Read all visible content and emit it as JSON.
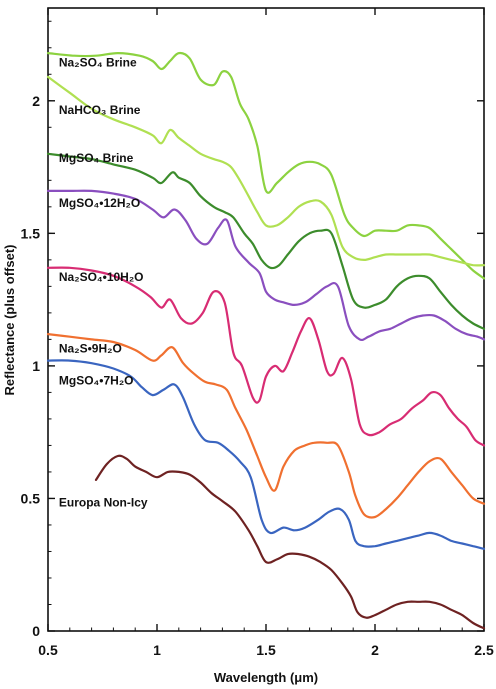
{
  "chart_data": {
    "type": "line",
    "title": "",
    "xlabel": "Wavelength (μm)",
    "ylabel": "Reflectance (plus offset)",
    "xlim": [
      0.5,
      2.5
    ],
    "ylim": [
      0,
      2.35
    ],
    "x_ticks": [
      "0.5",
      "1",
      "1.5",
      "2",
      "2.5"
    ],
    "y_ticks": [
      "0",
      "0.5",
      "1",
      "1.5",
      "2"
    ],
    "x_tick_values": [
      0.5,
      1.0,
      1.5,
      2.0,
      2.5
    ],
    "y_tick_values": [
      0,
      0.5,
      1.0,
      1.5,
      2.0
    ],
    "grid": false,
    "legend": "inline labels",
    "series": [
      {
        "name": "Na₂SO₄ Brine",
        "color": "#8cd240",
        "x": [
          0.5,
          0.62,
          0.72,
          0.82,
          0.92,
          0.98,
          1.02,
          1.06,
          1.1,
          1.15,
          1.2,
          1.26,
          1.3,
          1.34,
          1.38,
          1.42,
          1.46,
          1.5,
          1.55,
          1.6,
          1.65,
          1.7,
          1.75,
          1.8,
          1.86,
          1.9,
          1.95,
          2.0,
          2.05,
          2.1,
          2.15,
          2.2,
          2.25,
          2.3,
          2.35,
          2.4,
          2.45,
          2.5
        ],
        "y": [
          2.18,
          2.17,
          2.17,
          2.18,
          2.17,
          2.15,
          2.12,
          2.15,
          2.18,
          2.16,
          2.08,
          2.06,
          2.11,
          2.09,
          1.99,
          1.93,
          1.83,
          1.66,
          1.69,
          1.73,
          1.76,
          1.77,
          1.76,
          1.72,
          1.57,
          1.52,
          1.49,
          1.51,
          1.51,
          1.51,
          1.53,
          1.53,
          1.52,
          1.48,
          1.44,
          1.4,
          1.36,
          1.33
        ],
        "label_x": 0.55,
        "label_y": 2.13
      },
      {
        "name": "NaHCO₃ Brine",
        "color": "#b0e052",
        "x": [
          0.5,
          0.6,
          0.7,
          0.8,
          0.9,
          0.98,
          1.02,
          1.06,
          1.1,
          1.15,
          1.2,
          1.26,
          1.3,
          1.34,
          1.38,
          1.42,
          1.46,
          1.5,
          1.55,
          1.6,
          1.65,
          1.7,
          1.75,
          1.8,
          1.85,
          1.9,
          1.95,
          2.0,
          2.05,
          2.1,
          2.15,
          2.2,
          2.25,
          2.3,
          2.35,
          2.4,
          2.45,
          2.5
        ],
        "y": [
          2.09,
          2.03,
          1.97,
          1.93,
          1.9,
          1.87,
          1.84,
          1.89,
          1.86,
          1.83,
          1.8,
          1.78,
          1.77,
          1.75,
          1.7,
          1.64,
          1.58,
          1.53,
          1.53,
          1.56,
          1.6,
          1.62,
          1.62,
          1.57,
          1.45,
          1.41,
          1.4,
          1.41,
          1.42,
          1.42,
          1.42,
          1.42,
          1.42,
          1.41,
          1.4,
          1.39,
          1.38,
          1.38
        ],
        "label_x": 0.55,
        "label_y": 1.95
      },
      {
        "name": "MgSO₄ Brine",
        "color": "#3c8c2c",
        "x": [
          0.5,
          0.6,
          0.7,
          0.8,
          0.9,
          0.98,
          1.02,
          1.07,
          1.1,
          1.15,
          1.2,
          1.26,
          1.31,
          1.35,
          1.4,
          1.44,
          1.48,
          1.52,
          1.56,
          1.6,
          1.65,
          1.7,
          1.75,
          1.8,
          1.85,
          1.9,
          1.95,
          2.0,
          2.05,
          2.1,
          2.15,
          2.2,
          2.25,
          2.3,
          2.35,
          2.4,
          2.45,
          2.5
        ],
        "y": [
          1.8,
          1.79,
          1.78,
          1.76,
          1.74,
          1.71,
          1.69,
          1.73,
          1.71,
          1.69,
          1.64,
          1.6,
          1.58,
          1.56,
          1.5,
          1.46,
          1.4,
          1.37,
          1.38,
          1.42,
          1.47,
          1.5,
          1.51,
          1.5,
          1.38,
          1.25,
          1.22,
          1.23,
          1.25,
          1.3,
          1.33,
          1.34,
          1.33,
          1.28,
          1.23,
          1.19,
          1.16,
          1.14
        ],
        "label_x": 0.55,
        "label_y": 1.77
      },
      {
        "name": "MgSO₄•12H₂O",
        "color": "#8a4fbf",
        "x": [
          0.5,
          0.6,
          0.7,
          0.8,
          0.9,
          0.98,
          1.03,
          1.08,
          1.13,
          1.18,
          1.23,
          1.28,
          1.32,
          1.36,
          1.42,
          1.47,
          1.5,
          1.54,
          1.58,
          1.63,
          1.68,
          1.73,
          1.78,
          1.83,
          1.88,
          1.93,
          1.97,
          2.02,
          2.07,
          2.12,
          2.17,
          2.22,
          2.27,
          2.32,
          2.37,
          2.42,
          2.47,
          2.5
        ],
        "y": [
          1.66,
          1.66,
          1.66,
          1.65,
          1.63,
          1.59,
          1.56,
          1.59,
          1.55,
          1.48,
          1.46,
          1.52,
          1.55,
          1.45,
          1.39,
          1.35,
          1.28,
          1.25,
          1.24,
          1.23,
          1.24,
          1.27,
          1.3,
          1.3,
          1.15,
          1.1,
          1.11,
          1.13,
          1.14,
          1.16,
          1.18,
          1.19,
          1.19,
          1.17,
          1.14,
          1.12,
          1.11,
          1.1
        ],
        "label_x": 0.55,
        "label_y": 1.6
      },
      {
        "name": "Na₂SO₄•10H₂O",
        "color": "#d82c73",
        "x": [
          0.5,
          0.6,
          0.7,
          0.8,
          0.9,
          0.97,
          1.02,
          1.06,
          1.11,
          1.16,
          1.21,
          1.26,
          1.31,
          1.35,
          1.39,
          1.44,
          1.47,
          1.5,
          1.54,
          1.58,
          1.62,
          1.66,
          1.7,
          1.74,
          1.78,
          1.81,
          1.85,
          1.89,
          1.93,
          1.97,
          2.02,
          2.07,
          2.12,
          2.17,
          2.22,
          2.26,
          2.3,
          2.34,
          2.38,
          2.42,
          2.46,
          2.5
        ],
        "y": [
          1.37,
          1.37,
          1.36,
          1.34,
          1.3,
          1.26,
          1.22,
          1.25,
          1.18,
          1.16,
          1.2,
          1.28,
          1.24,
          1.05,
          1.0,
          0.88,
          0.87,
          0.96,
          1.0,
          0.98,
          1.05,
          1.13,
          1.18,
          1.1,
          0.98,
          0.97,
          1.03,
          0.95,
          0.78,
          0.74,
          0.75,
          0.78,
          0.8,
          0.84,
          0.87,
          0.9,
          0.89,
          0.84,
          0.8,
          0.77,
          0.72,
          0.7
        ],
        "label_x": 0.55,
        "label_y": 1.32
      },
      {
        "name": "Na₂S•9H₂O",
        "color": "#f07030",
        "x": [
          0.5,
          0.6,
          0.7,
          0.8,
          0.9,
          0.98,
          1.02,
          1.07,
          1.12,
          1.17,
          1.22,
          1.27,
          1.32,
          1.36,
          1.41,
          1.46,
          1.5,
          1.54,
          1.58,
          1.63,
          1.68,
          1.72,
          1.78,
          1.83,
          1.88,
          1.91,
          1.95,
          2.0,
          2.05,
          2.1,
          2.15,
          2.2,
          2.25,
          2.3,
          2.35,
          2.4,
          2.45,
          2.5
        ],
        "y": [
          1.12,
          1.11,
          1.1,
          1.09,
          1.06,
          1.02,
          1.04,
          1.07,
          1.01,
          0.97,
          0.94,
          0.93,
          0.91,
          0.84,
          0.76,
          0.66,
          0.58,
          0.53,
          0.62,
          0.68,
          0.7,
          0.71,
          0.71,
          0.7,
          0.6,
          0.51,
          0.44,
          0.43,
          0.46,
          0.5,
          0.55,
          0.6,
          0.64,
          0.65,
          0.6,
          0.55,
          0.5,
          0.48
        ],
        "label_x": 0.55,
        "label_y": 1.05
      },
      {
        "name": "MgSO₄•7H₂O",
        "color": "#3a65c0",
        "x": [
          0.5,
          0.6,
          0.7,
          0.8,
          0.88,
          0.93,
          0.98,
          1.03,
          1.08,
          1.12,
          1.17,
          1.22,
          1.28,
          1.33,
          1.38,
          1.43,
          1.48,
          1.52,
          1.58,
          1.63,
          1.68,
          1.74,
          1.79,
          1.84,
          1.88,
          1.91,
          1.95,
          2.0,
          2.05,
          2.1,
          2.15,
          2.2,
          2.25,
          2.3,
          2.35,
          2.4,
          2.45,
          2.5
        ],
        "y": [
          1.02,
          1.02,
          1.01,
          0.99,
          0.96,
          0.92,
          0.89,
          0.91,
          0.93,
          0.88,
          0.78,
          0.72,
          0.71,
          0.68,
          0.64,
          0.58,
          0.42,
          0.37,
          0.39,
          0.38,
          0.39,
          0.42,
          0.45,
          0.46,
          0.42,
          0.34,
          0.32,
          0.32,
          0.33,
          0.34,
          0.35,
          0.36,
          0.37,
          0.36,
          0.34,
          0.33,
          0.32,
          0.31
        ],
        "label_x": 0.55,
        "label_y": 0.93
      },
      {
        "name": "Europa  Non-Icy",
        "color": "#6e2222",
        "x": [
          0.72,
          0.77,
          0.82,
          0.86,
          0.9,
          0.95,
          1.0,
          1.05,
          1.1,
          1.15,
          1.2,
          1.25,
          1.3,
          1.36,
          1.42,
          1.46,
          1.5,
          1.55,
          1.6,
          1.65,
          1.7,
          1.75,
          1.8,
          1.85,
          1.89,
          1.92,
          1.96,
          2.0,
          2.05,
          2.1,
          2.15,
          2.2,
          2.25,
          2.3,
          2.35,
          2.4,
          2.45,
          2.5
        ],
        "y": [
          0.57,
          0.63,
          0.66,
          0.65,
          0.62,
          0.6,
          0.58,
          0.6,
          0.6,
          0.59,
          0.56,
          0.52,
          0.49,
          0.45,
          0.38,
          0.32,
          0.26,
          0.27,
          0.29,
          0.29,
          0.28,
          0.26,
          0.23,
          0.18,
          0.13,
          0.07,
          0.05,
          0.06,
          0.08,
          0.1,
          0.11,
          0.11,
          0.11,
          0.1,
          0.08,
          0.06,
          0.03,
          0.01
        ],
        "label_x": 0.55,
        "label_y": 0.47
      }
    ]
  }
}
